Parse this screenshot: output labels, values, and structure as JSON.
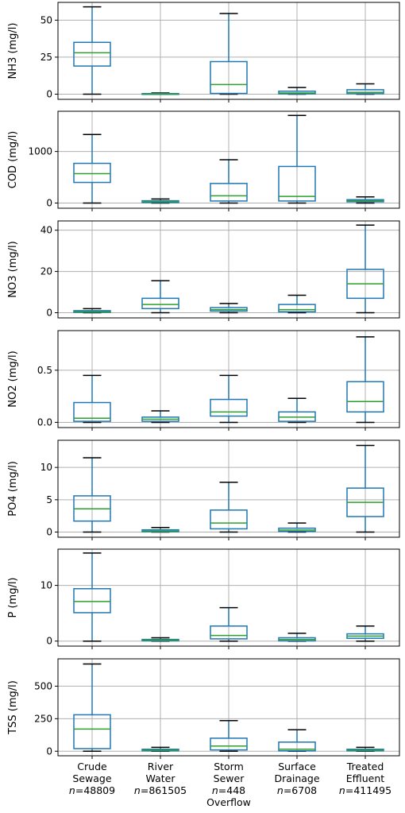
{
  "chart_data": {
    "type": "boxplot",
    "categories": [
      {
        "lines": [
          "Crude",
          "Sewage"
        ],
        "n": "48809"
      },
      {
        "lines": [
          "River",
          "Water"
        ],
        "n": "861505"
      },
      {
        "lines": [
          "Storm",
          "Sewer",
          "Overflow"
        ],
        "n": "448"
      },
      {
        "lines": [
          "Surface",
          "Drainage"
        ],
        "n": "6708"
      },
      {
        "lines": [
          "Treated",
          "Effluent"
        ],
        "n": "411495"
      }
    ],
    "n_prefix": "n",
    "n_sep": "=",
    "colors": {
      "box": "#1f77b4",
      "median": "#2ca02c",
      "grid": "#b0b0b0"
    },
    "grid": true,
    "panels": [
      {
        "ylabel": "NH3 (mg/l)",
        "ylim": [
          -3.5,
          62
        ],
        "yticks": [
          0,
          25,
          50
        ],
        "boxes": [
          {
            "whislo": 0,
            "q1": 19,
            "med": 28,
            "q3": 35,
            "whishi": 59
          },
          {
            "whislo": 0,
            "q1": 0.1,
            "med": 0.2,
            "q3": 0.4,
            "whishi": 0.8
          },
          {
            "whislo": 0,
            "q1": 0.5,
            "med": 6.5,
            "q3": 22,
            "whishi": 54.5
          },
          {
            "whislo": 0,
            "q1": 0.2,
            "med": 0.8,
            "q3": 2,
            "whishi": 4.5
          },
          {
            "whislo": 0,
            "q1": 0.3,
            "med": 1.2,
            "q3": 3,
            "whishi": 7
          }
        ]
      },
      {
        "ylabel": "COD (mg/l)",
        "ylim": [
          -100,
          1780
        ],
        "yticks": [
          0,
          1000
        ],
        "boxes": [
          {
            "whislo": 0,
            "q1": 400,
            "med": 570,
            "q3": 770,
            "whishi": 1330
          },
          {
            "whislo": 0,
            "q1": 10,
            "med": 25,
            "q3": 45,
            "whishi": 80
          },
          {
            "whislo": 0,
            "q1": 40,
            "med": 140,
            "q3": 380,
            "whishi": 840
          },
          {
            "whislo": 0,
            "q1": 40,
            "med": 130,
            "q3": 710,
            "whishi": 1700
          },
          {
            "whislo": 0,
            "q1": 25,
            "med": 45,
            "q3": 65,
            "whishi": 120
          }
        ]
      },
      {
        "ylabel": "NO3 (mg/l)",
        "ylim": [
          -2.5,
          44.5
        ],
        "yticks": [
          0,
          20,
          40
        ],
        "boxes": [
          {
            "whislo": 0,
            "q1": 0.2,
            "med": 0.5,
            "q3": 1,
            "whishi": 2
          },
          {
            "whislo": 0,
            "q1": 2,
            "med": 4,
            "q3": 7,
            "whishi": 15.5
          },
          {
            "whislo": 0,
            "q1": 0.8,
            "med": 1.5,
            "q3": 2.5,
            "whishi": 4.5
          },
          {
            "whislo": 0,
            "q1": 0.5,
            "med": 1.5,
            "q3": 4,
            "whishi": 8.5
          },
          {
            "whislo": 0,
            "q1": 7,
            "med": 14,
            "q3": 21,
            "whishi": 42.5
          }
        ]
      },
      {
        "ylabel": "NO2 (mg/l)",
        "ylim": [
          -0.05,
          0.88
        ],
        "yticks": [
          0.0,
          0.5
        ],
        "ytick_labels": [
          "0.0",
          "0.5"
        ],
        "boxes": [
          {
            "whislo": 0,
            "q1": 0.01,
            "med": 0.04,
            "q3": 0.19,
            "whishi": 0.45
          },
          {
            "whislo": 0,
            "q1": 0.01,
            "med": 0.03,
            "q3": 0.05,
            "whishi": 0.11
          },
          {
            "whislo": 0,
            "q1": 0.06,
            "med": 0.1,
            "q3": 0.22,
            "whishi": 0.45
          },
          {
            "whislo": 0,
            "q1": 0.01,
            "med": 0.05,
            "q3": 0.1,
            "whishi": 0.23
          },
          {
            "whislo": 0,
            "q1": 0.1,
            "med": 0.2,
            "q3": 0.39,
            "whishi": 0.82
          }
        ]
      },
      {
        "ylabel": "PO4 (mg/l)",
        "ylim": [
          -0.8,
          14.2
        ],
        "yticks": [
          0,
          5,
          10
        ],
        "boxes": [
          {
            "whislo": 0,
            "q1": 1.7,
            "med": 3.6,
            "q3": 5.6,
            "whishi": 11.5
          },
          {
            "whislo": 0,
            "q1": 0.05,
            "med": 0.15,
            "q3": 0.35,
            "whishi": 0.7
          },
          {
            "whislo": 0,
            "q1": 0.5,
            "med": 1.4,
            "q3": 3.4,
            "whishi": 7.7
          },
          {
            "whislo": 0,
            "q1": 0.1,
            "med": 0.3,
            "q3": 0.6,
            "whishi": 1.4
          },
          {
            "whislo": 0,
            "q1": 2.4,
            "med": 4.6,
            "q3": 6.8,
            "whishi": 13.4
          }
        ]
      },
      {
        "ylabel": "P (mg/l)",
        "ylim": [
          -0.9,
          16.5
        ],
        "yticks": [
          0,
          10
        ],
        "boxes": [
          {
            "whislo": 0,
            "q1": 5.1,
            "med": 7.1,
            "q3": 9.4,
            "whishi": 15.8
          },
          {
            "whislo": 0,
            "q1": 0.05,
            "med": 0.15,
            "q3": 0.3,
            "whishi": 0.6
          },
          {
            "whislo": 0,
            "q1": 0.4,
            "med": 1.0,
            "q3": 2.7,
            "whishi": 6
          },
          {
            "whislo": 0,
            "q1": 0.05,
            "med": 0.3,
            "q3": 0.6,
            "whishi": 1.4
          },
          {
            "whislo": 0,
            "q1": 0.5,
            "med": 0.9,
            "q3": 1.3,
            "whishi": 2.7
          }
        ]
      },
      {
        "ylabel": "TSS (mg/l)",
        "ylim": [
          -35,
          710
        ],
        "yticks": [
          0,
          250,
          500
        ],
        "boxes": [
          {
            "whislo": 0,
            "q1": 20,
            "med": 170,
            "q3": 280,
            "whishi": 670
          },
          {
            "whislo": 0,
            "q1": 3,
            "med": 8,
            "q3": 15,
            "whishi": 30
          },
          {
            "whislo": 0,
            "q1": 10,
            "med": 40,
            "q3": 100,
            "whishi": 235
          },
          {
            "whislo": 0,
            "q1": 3,
            "med": 15,
            "q3": 70,
            "whishi": 165
          },
          {
            "whislo": 0,
            "q1": 3,
            "med": 8,
            "q3": 15,
            "whishi": 30
          }
        ]
      }
    ]
  }
}
